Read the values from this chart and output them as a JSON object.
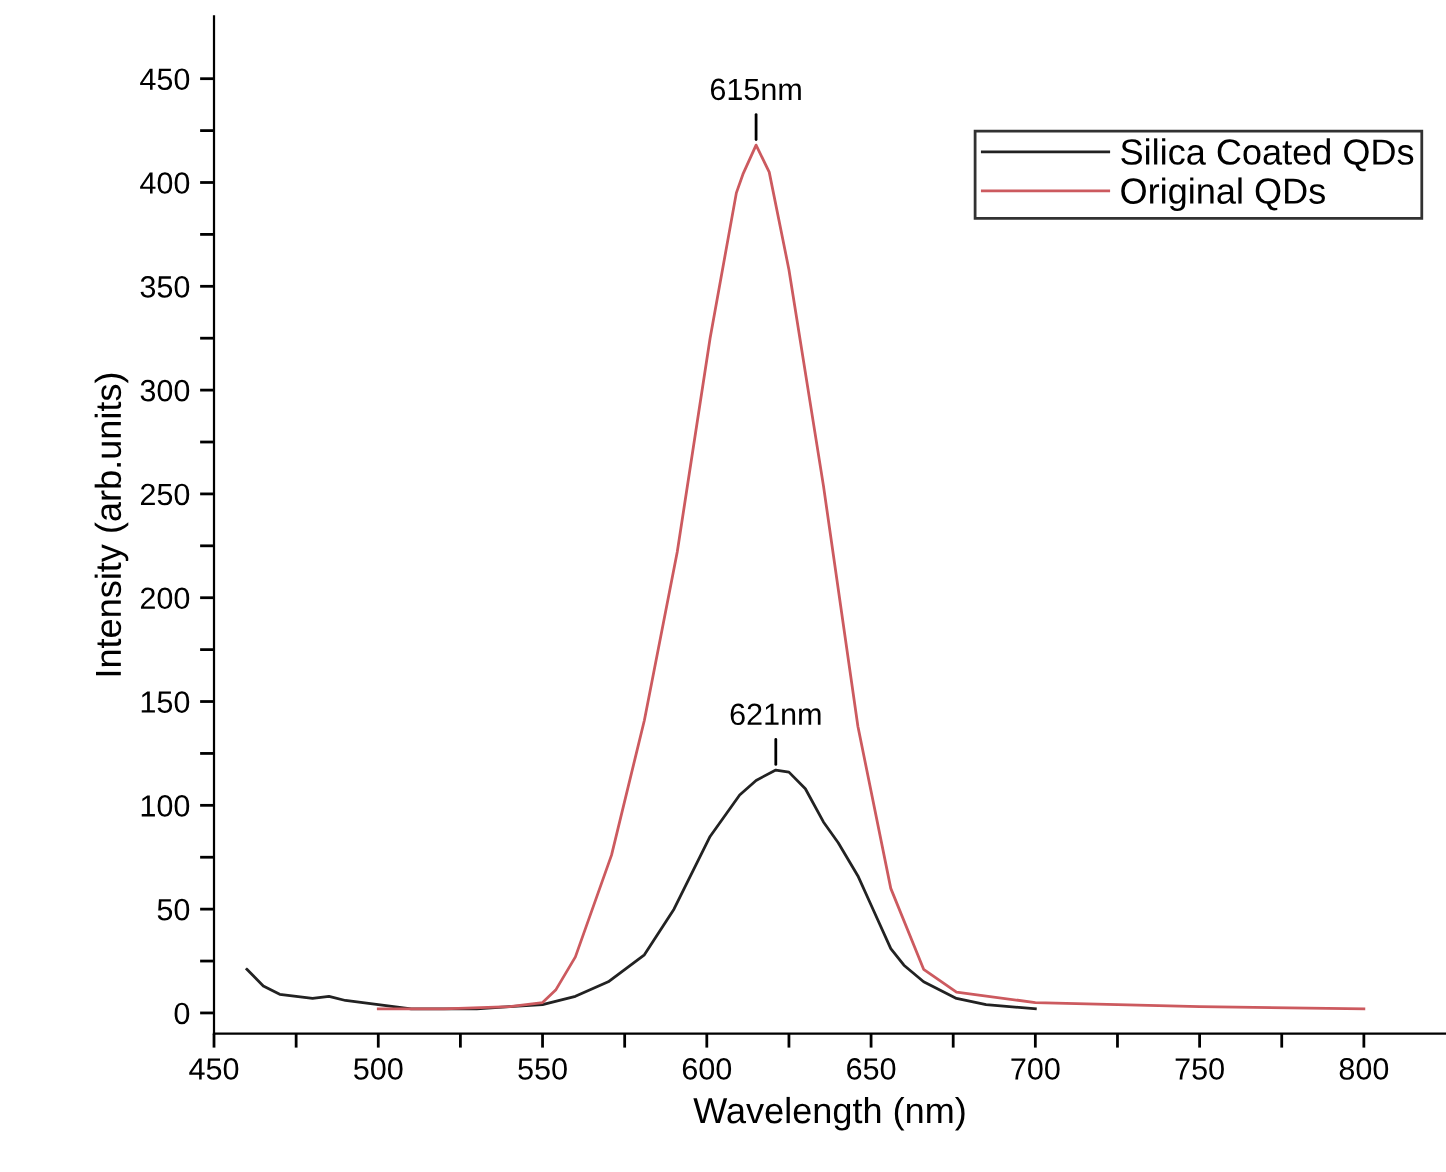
{
  "chart_data": {
    "type": "line",
    "xlabel": "Wavelength (nm)",
    "ylabel": "Intensity (arb.units)",
    "xlim": [
      450,
      825
    ],
    "ylim": [
      -10,
      480
    ],
    "xticks": [
      450,
      {
        "value": 475,
        "label": null
      },
      500,
      {
        "value": 525,
        "label": null
      },
      550,
      {
        "value": 575,
        "label": null
      },
      600,
      {
        "value": 625,
        "label": null
      },
      650,
      {
        "value": 675,
        "label": null
      },
      700,
      {
        "value": 725,
        "label": null
      },
      750,
      {
        "value": 775,
        "label": null
      },
      800
    ],
    "yticks": [
      0,
      {
        "value": 25,
        "label": null
      },
      50,
      {
        "value": 75,
        "label": null
      },
      100,
      {
        "value": 125,
        "label": null
      },
      150,
      {
        "value": 175,
        "label": null
      },
      200,
      {
        "value": 225,
        "label": null
      },
      250,
      {
        "value": 275,
        "label": null
      },
      300,
      {
        "value": 325,
        "label": null
      },
      350,
      {
        "value": 375,
        "label": null
      },
      400,
      {
        "value": 425,
        "label": null
      },
      450
    ],
    "grid": false,
    "legend": "top right",
    "marker": "none",
    "line_style": "solid",
    "series": [
      {
        "name": "Silica Coated QDs",
        "color": "#222222",
        "x": [
          460,
          465,
          470,
          480,
          485,
          490,
          500,
          510,
          520,
          530,
          540,
          550,
          560,
          570,
          581,
          590,
          601,
          610,
          615,
          621,
          625,
          630,
          635.5,
          640,
          646,
          650,
          656,
          660,
          666,
          676,
          685,
          700
        ],
        "values": [
          21,
          13,
          9,
          7,
          8,
          6,
          4,
          2,
          2,
          2,
          3,
          4,
          8,
          15,
          28,
          50,
          85,
          105,
          112,
          117,
          116,
          108,
          92,
          82,
          66,
          52,
          31,
          23,
          15,
          7,
          4,
          2
        ]
      },
      {
        "name": "Original QDs",
        "color": "#cc5a5f",
        "x": [
          500,
          520,
          540,
          550,
          554,
          560,
          571,
          581,
          591,
          601,
          609,
          611,
          615,
          619,
          625,
          635.5,
          646,
          656,
          666,
          676,
          700,
          750,
          800
        ],
        "values": [
          2,
          2,
          3,
          5,
          11,
          27,
          76,
          141,
          222,
          325,
          395,
          404,
          418,
          405,
          358,
          254,
          138,
          60,
          21,
          10,
          5,
          3,
          2
        ]
      }
    ],
    "annotations": [
      {
        "text": "615nm",
        "x": 615,
        "y": 418
      },
      {
        "text": "621nm",
        "x": 621,
        "y": 117
      }
    ]
  }
}
